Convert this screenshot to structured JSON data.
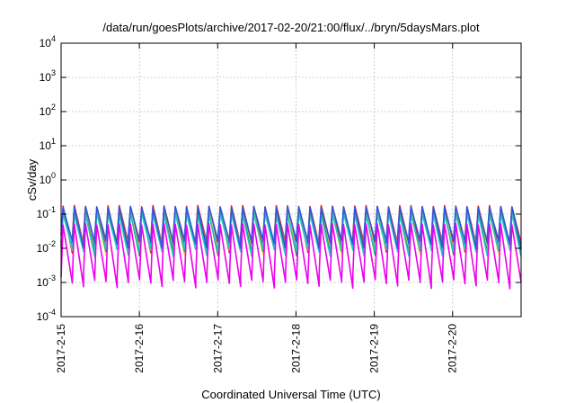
{
  "chart_data": {
    "type": "line",
    "title": "/data/run/goesPlots/archive/2017-02-20/21:00/flux/../bryn/5daysMars.plot",
    "xlabel": "Coordinated Universal Time (UTC)",
    "ylabel": "cSv/day",
    "y_scale": "log",
    "ylim": [
      0.0001,
      10000
    ],
    "xlim": [
      "2017-02-15",
      "2017-02-20 21:00"
    ],
    "x_ticks": [
      "2017-2-15",
      "2017-2-16",
      "2017-2-17",
      "2017-2-18",
      "2017-2-19",
      "2017-2-20"
    ],
    "y_ticks": [
      {
        "base": "10",
        "exp": "4"
      },
      {
        "base": "10",
        "exp": "3"
      },
      {
        "base": "10",
        "exp": "2"
      },
      {
        "base": "10",
        "exp": "1"
      },
      {
        "base": "10",
        "exp": "0"
      },
      {
        "base": "10",
        "exp": "-1"
      },
      {
        "base": "10",
        "exp": "-2"
      },
      {
        "base": "10",
        "exp": "-3"
      },
      {
        "base": "10",
        "exp": "-4"
      }
    ],
    "grid": true,
    "legend": false,
    "pattern": "sawtooth, approx. 7 cycles per day",
    "series": [
      {
        "color": "#d62728",
        "peak": 0.17,
        "trough": 0.012
      },
      {
        "color": "#e8e233",
        "peak": 0.13,
        "trough": 0.01
      },
      {
        "color": "#2a7a2a",
        "peak": 0.11,
        "trough": 0.009
      },
      {
        "color": "#22c7c7",
        "peak": 0.1,
        "trough": 0.008
      },
      {
        "color": "#3355dd",
        "peak": 0.16,
        "trough": 0.014
      },
      {
        "color": "#ee00ee",
        "peak": 0.05,
        "trough": 0.001
      }
    ]
  }
}
